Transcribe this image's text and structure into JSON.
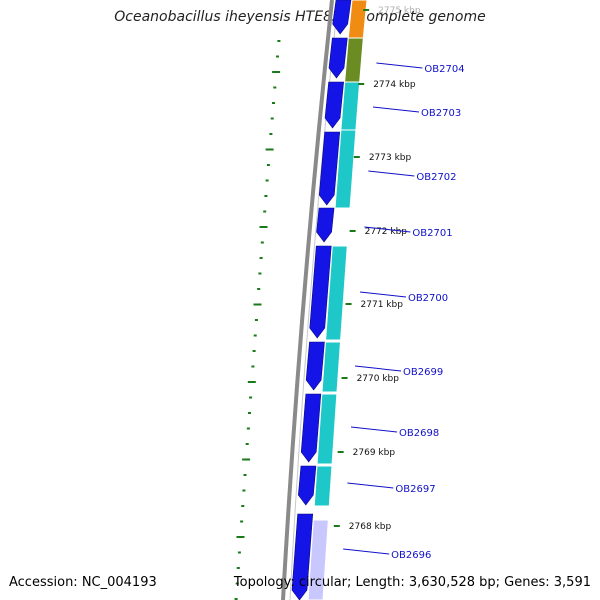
{
  "title": "Oceanobacillus iheyensis HTE831, complete genome",
  "footer": {
    "accession": "Accession: NC_004193",
    "summary": "Topology: circular; Length: 3,630,528 bp; Genes: 3,591"
  },
  "colors": {
    "forward_cds": "#1414e6",
    "reverse_cds": "#1ec8c8",
    "olive_cds": "#6b8c23",
    "orange_cds": "#f08c14",
    "backbone": "#8a8a8a",
    "tick": "#1a7a1a",
    "label": "#1010c8"
  },
  "kbp_marks": [
    {
      "label": "2775 kbp"
    },
    {
      "label": "2774 kbp"
    },
    {
      "label": "2773 kbp"
    },
    {
      "label": "2772 kbp"
    },
    {
      "label": "2771 kbp"
    },
    {
      "label": "2770 kbp"
    },
    {
      "label": "2769 kbp"
    },
    {
      "label": "2768 kbp"
    }
  ],
  "gene_labels": [
    {
      "name": "OB2704"
    },
    {
      "name": "OB2703"
    },
    {
      "name": "OB2702"
    },
    {
      "name": "OB2701"
    },
    {
      "name": "OB2700"
    },
    {
      "name": "OB2699"
    },
    {
      "name": "OB2698"
    },
    {
      "name": "OB2697"
    },
    {
      "name": "OB2696"
    }
  ]
}
